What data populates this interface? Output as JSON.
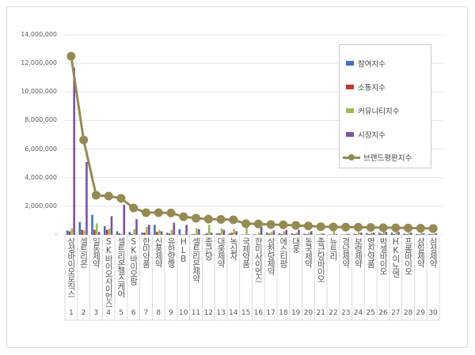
{
  "chart_data": {
    "type": "bar+line",
    "categories": [
      "삼성바이오로직스",
      "셀트리온",
      "일동제약",
      "SK바이오사이언스",
      "셀트리온헬스케어",
      "SK바이오팜",
      "한미약품",
      "신풍제약",
      "유한양행",
      "HLB",
      "셀트리온제약",
      "종근당",
      "대웅제약",
      "녹십자",
      "국제약품",
      "한미사이언스",
      "삼천당제약",
      "에스티팜",
      "대웅",
      "동국제약",
      "종근당바이오",
      "뉴트리",
      "경남제약",
      "보령제약",
      "영진약품",
      "박셀바이오",
      "HK이노엔",
      "프롬바이오",
      "삼일제약",
      "삼성제약"
    ],
    "ranks": [
      "1",
      "2",
      "3",
      "4",
      "5",
      "6",
      "7",
      "8",
      "9",
      "10",
      "11",
      "12",
      "13",
      "14",
      "15",
      "16",
      "17",
      "18",
      "19",
      "20",
      "21",
      "22",
      "23",
      "24",
      "25",
      "26",
      "27",
      "28",
      "29",
      "30"
    ],
    "series": [
      {
        "name": "참여지수",
        "type": "bar",
        "color": "#4472c4",
        "values": [
          300000,
          900000,
          1400000,
          600000,
          250000,
          200000,
          150000,
          700000,
          150000,
          400000,
          50000,
          50000,
          100000,
          100000,
          20000,
          50000,
          150000,
          100000,
          100000,
          80000,
          30000,
          30000,
          30000,
          80000,
          120000,
          150000,
          150000,
          80000,
          60000,
          60000
        ]
      },
      {
        "name": "소통지수",
        "type": "bar",
        "color": "#c0392b",
        "values": [
          250000,
          350000,
          350000,
          350000,
          100000,
          50000,
          150000,
          200000,
          100000,
          20000,
          50000,
          100000,
          100000,
          150000,
          20000,
          20000,
          80000,
          50000,
          60000,
          50000,
          20000,
          20000,
          20000,
          50000,
          60000,
          80000,
          60000,
          60000,
          40000,
          40000
        ]
      },
      {
        "name": "커뮤니티지수",
        "type": "bar",
        "color": "#9bbb59",
        "values": [
          450000,
          300000,
          800000,
          450000,
          50000,
          400000,
          550000,
          350000,
          350000,
          50000,
          450000,
          700000,
          450000,
          400000,
          750000,
          150000,
          200000,
          250000,
          150000,
          150000,
          120000,
          500000,
          80000,
          200000,
          150000,
          250000,
          200000,
          150000,
          150000,
          100000
        ]
      },
      {
        "name": "시장지수",
        "type": "bar",
        "color": "#7a53a6",
        "values": [
          11700000,
          5100000,
          200000,
          1300000,
          2100000,
          1100000,
          700000,
          250000,
          850000,
          700000,
          400000,
          150000,
          350000,
          250000,
          30000,
          550000,
          300000,
          350000,
          350000,
          250000,
          80000,
          50000,
          60000,
          150000,
          150000,
          200000,
          200000,
          150000,
          100000,
          100000
        ]
      },
      {
        "name": "브랜드평판지수",
        "type": "line",
        "color": "#948a54",
        "values": [
          12500000,
          6640000,
          2770000,
          2710000,
          2550000,
          1880000,
          1550000,
          1550000,
          1530000,
          1270000,
          1160000,
          1100000,
          1080000,
          1050000,
          780000,
          760000,
          720000,
          700000,
          660000,
          620000,
          570000,
          550000,
          540000,
          530000,
          520000,
          500000,
          490000,
          480000,
          460000,
          440000
        ]
      }
    ],
    "yticks": [
      "14,000,000",
      "12,000,000",
      "10,000,000",
      "8,000,000",
      "6,000,000",
      "4,000,000",
      "2,000,000",
      "-"
    ],
    "ylim": [
      0,
      14000000
    ],
    "grid": true,
    "legend": "right"
  }
}
